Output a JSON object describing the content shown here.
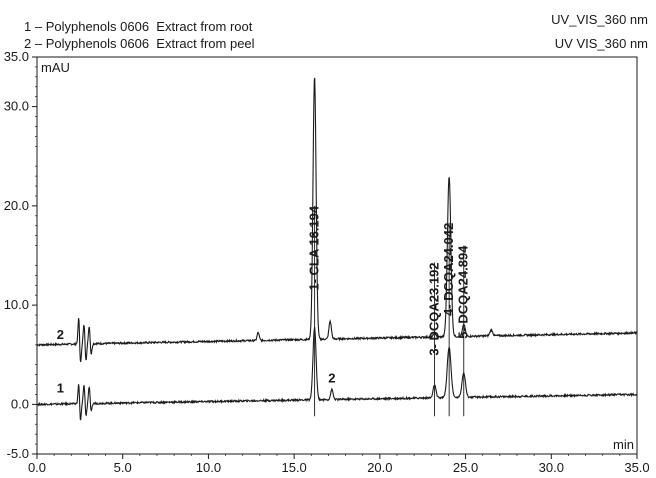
{
  "legend": [
    {
      "num": "1",
      "text": "Polyphenols 0606  Extract from root"
    },
    {
      "num": "2",
      "text": "Polyphenols 0606  Extract from peel"
    }
  ],
  "detectors": [
    "UV_VIS_360 nm",
    "UV VIS_360 nm"
  ],
  "chart_data": {
    "type": "line",
    "xlabel": "min",
    "ylabel": "mAU",
    "xlim": [
      0.0,
      35.0
    ],
    "ylim": [
      -5.0,
      35.0
    ],
    "xticks": [
      "0.0",
      "5.0",
      "10.0",
      "15.0",
      "20.0",
      "25.0",
      "30.0",
      "35.0"
    ],
    "yticks": [
      "-5.0",
      "0.0",
      "10.0",
      "20.0",
      "30.0",
      "35.0"
    ],
    "series": [
      {
        "name": "2",
        "baseline_start": 6.0,
        "baseline_end": 7.2,
        "peaks": [
          {
            "rt": 2.45,
            "height": 3.4,
            "width": 0.05
          },
          {
            "rt": 2.52,
            "height": -2.8,
            "width": 0.05
          },
          {
            "rt": 2.75,
            "height": 2.1,
            "width": 0.05
          },
          {
            "rt": 2.85,
            "height": -1.8,
            "width": 0.05
          },
          {
            "rt": 3.05,
            "height": 1.9,
            "width": 0.05
          },
          {
            "rt": 3.15,
            "height": -1.2,
            "width": 0.05
          },
          {
            "rt": 12.9,
            "height": 0.8,
            "width": 0.06
          },
          {
            "rt": 16.19,
            "height": 26.5,
            "width": 0.09
          },
          {
            "rt": 17.1,
            "height": 1.8,
            "width": 0.07
          },
          {
            "rt": 23.2,
            "height": 0.4,
            "width": 0.07
          },
          {
            "rt": 24.04,
            "height": 16.2,
            "width": 0.1
          },
          {
            "rt": 24.9,
            "height": 1.2,
            "width": 0.08
          },
          {
            "rt": 26.5,
            "height": 0.6,
            "width": 0.08
          }
        ]
      },
      {
        "name": "1",
        "baseline_start": 0.0,
        "baseline_end": 1.0,
        "peaks": [
          {
            "rt": 2.45,
            "height": 2.6,
            "width": 0.05
          },
          {
            "rt": 2.52,
            "height": -2.4,
            "width": 0.05
          },
          {
            "rt": 2.75,
            "height": 2.0,
            "width": 0.05
          },
          {
            "rt": 2.85,
            "height": -1.4,
            "width": 0.05
          },
          {
            "rt": 3.05,
            "height": 1.8,
            "width": 0.05
          },
          {
            "rt": 3.15,
            "height": -1.0,
            "width": 0.05
          },
          {
            "rt": 16.19,
            "height": 7.3,
            "width": 0.09
          },
          {
            "rt": 17.2,
            "height": 1.0,
            "width": 0.07
          },
          {
            "rt": 23.19,
            "height": 1.3,
            "width": 0.08
          },
          {
            "rt": 24.04,
            "height": 5.1,
            "width": 0.11
          },
          {
            "rt": 24.89,
            "height": 2.5,
            "width": 0.1
          }
        ]
      }
    ],
    "peak_labels": [
      {
        "text": "1- CLA 16.194",
        "rt": 16.194,
        "y_top": 20.0
      },
      {
        "text": "3- DCQA23.192",
        "rt": 23.192,
        "y_top": 14.3
      },
      {
        "text": "4- DCQA24.042",
        "rt": 24.042,
        "y_top": 18.3
      },
      {
        "text": "5- DCQA24.894",
        "rt": 24.894,
        "y_top": 16.0
      }
    ],
    "annotations": [
      {
        "text": "2",
        "x": 17.2,
        "y": 2.2
      },
      {
        "text": "2",
        "x": 0.2,
        "y": 6.6
      },
      {
        "text": "1",
        "x": 0.2,
        "y": 1.2
      }
    ]
  }
}
